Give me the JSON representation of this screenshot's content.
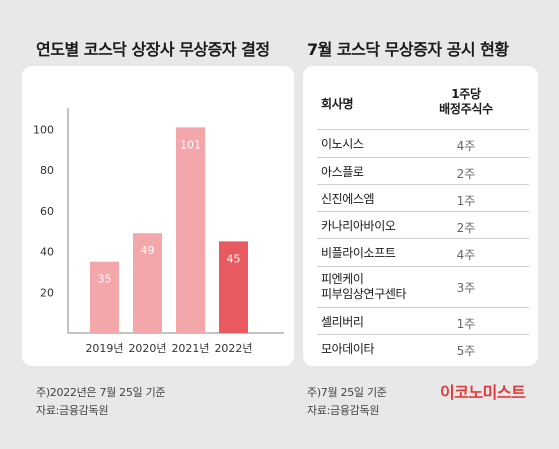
{
  "left_title": "연도별 코스닥 상장사 무상증자 결정",
  "right_title": "7월 코스닥 무상증자 공시 현황",
  "chart_data": {
    "type": "bar",
    "categories": [
      "2019년",
      "2020년",
      "2021년",
      "2022년"
    ],
    "values": [
      35,
      49,
      101,
      45
    ],
    "data_labels": [
      "35",
      "49",
      "101",
      "45"
    ],
    "yticks": [
      "20",
      "40",
      "60",
      "80",
      "100"
    ],
    "ylim": [
      0,
      110
    ],
    "colors": [
      "#f4a7aa",
      "#f4a7aa",
      "#f4a7aa",
      "#e85a5f"
    ],
    "grid": false,
    "title": "연도별 코스닥 상장사 무상증자 결정"
  },
  "table": {
    "header_company": "회사명",
    "header_ratio_line1": "1주당",
    "header_ratio_line2": "배정주식수",
    "rows": [
      {
        "name": "이노시스",
        "ratio": "4주"
      },
      {
        "name": "아스플로",
        "ratio": "2주"
      },
      {
        "name": "신진에스엠",
        "ratio": "1주"
      },
      {
        "name": "카나리아바이오",
        "ratio": "2주"
      },
      {
        "name": "비플라이소프트",
        "ratio": "4주"
      },
      {
        "name": "피엔케이",
        "name2": "피부임상연구센타",
        "ratio": "3주"
      },
      {
        "name": "셀리버리",
        "ratio": "1주"
      },
      {
        "name": "모아데이타",
        "ratio": "5주"
      }
    ]
  },
  "notes": {
    "left_1": "주)2022년은 7월 25일 기준",
    "left_2": "자료:금융감독원",
    "right_1": "주)7월 25일 기준",
    "right_2": "자료:금융감독원"
  },
  "logo": "이코노미스트",
  "colors": {
    "background": "#e9e8e8",
    "bar": "#f4a7aa",
    "bar_highlight": "#e85a5f",
    "logo": "#e23b3b"
  }
}
